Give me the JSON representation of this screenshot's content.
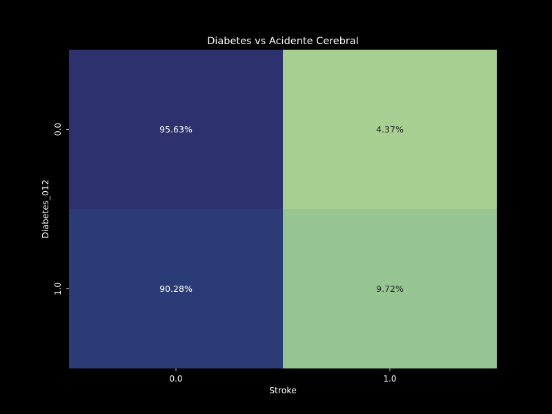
{
  "chart_data": {
    "type": "heatmap",
    "title": "Diabetes vs Acidente Cerebral",
    "xlabel": "Stroke",
    "ylabel": "Diabetes_012",
    "x_categories": [
      "0.0",
      "1.0"
    ],
    "y_categories": [
      "0.0",
      "1.0"
    ],
    "values": [
      [
        95.63,
        4.37
      ],
      [
        90.28,
        9.72
      ]
    ],
    "cell_labels": [
      [
        "95.63%",
        "4.37%"
      ],
      [
        "90.28%",
        "9.72%"
      ]
    ],
    "cell_colors": [
      [
        "#2d316e",
        "#a7cf92"
      ],
      [
        "#2b3b76",
        "#96c591"
      ]
    ],
    "label_colors": [
      [
        "#ffffff",
        "#262626"
      ],
      [
        "#ffffff",
        "#262626"
      ]
    ],
    "colorbar": false,
    "grid": false
  },
  "colors": {
    "background": "#000000",
    "text": "#ffffff"
  }
}
